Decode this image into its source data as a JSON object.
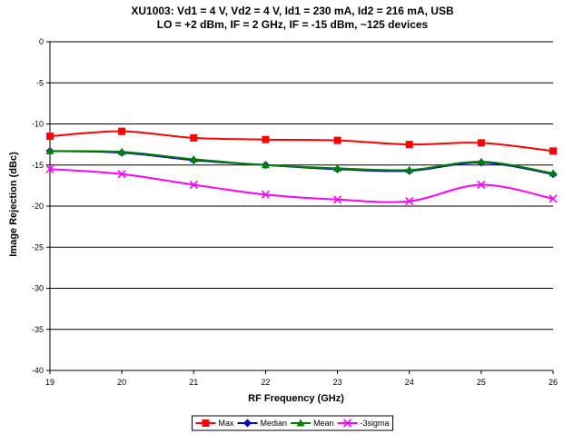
{
  "chart_data": {
    "type": "line",
    "title_lines": [
      "XU1003: Vd1 = 4 V, Vd2 = 4 V, Id1 = 230 mA, Id2 = 216 mA, USB",
      "LO = +2 dBm, IF = 2 GHz, IF = -15 dBm, ~125 devices"
    ],
    "xlabel": "RF Frequency (GHz)",
    "ylabel": "Image Rejection (dBc)",
    "x": [
      19,
      20,
      21,
      22,
      23,
      24,
      25,
      26
    ],
    "xlim": [
      19,
      26
    ],
    "ylim": [
      -40,
      0
    ],
    "x_ticks": [
      19,
      20,
      21,
      22,
      23,
      24,
      25,
      26
    ],
    "y_ticks": [
      0,
      -5,
      -10,
      -15,
      -20,
      -25,
      -30,
      -35,
      -40
    ],
    "grid": "horizontal",
    "legend_position": "bottom",
    "series": [
      {
        "name": "Max",
        "color": "#ff0000",
        "marker": "square",
        "values": [
          -11.5,
          -10.9,
          -11.7,
          -11.9,
          -12.0,
          -12.5,
          -12.3,
          -13.3
        ]
      },
      {
        "name": "Median",
        "color": "#0000cc",
        "marker": "diamond",
        "values": [
          -13.3,
          -13.5,
          -14.4,
          -15.0,
          -15.5,
          -15.7,
          -14.7,
          -16.1
        ]
      },
      {
        "name": "Mean",
        "color": "#008000",
        "marker": "triangle",
        "values": [
          -13.3,
          -13.4,
          -14.3,
          -15.0,
          -15.4,
          -15.6,
          -14.6,
          -16.0
        ]
      },
      {
        "name": "-3sigma",
        "color": "#ff00ff",
        "marker": "x",
        "values": [
          -15.5,
          -16.1,
          -17.4,
          -18.6,
          -19.2,
          -19.4,
          -17.4,
          -19.1
        ]
      }
    ]
  }
}
